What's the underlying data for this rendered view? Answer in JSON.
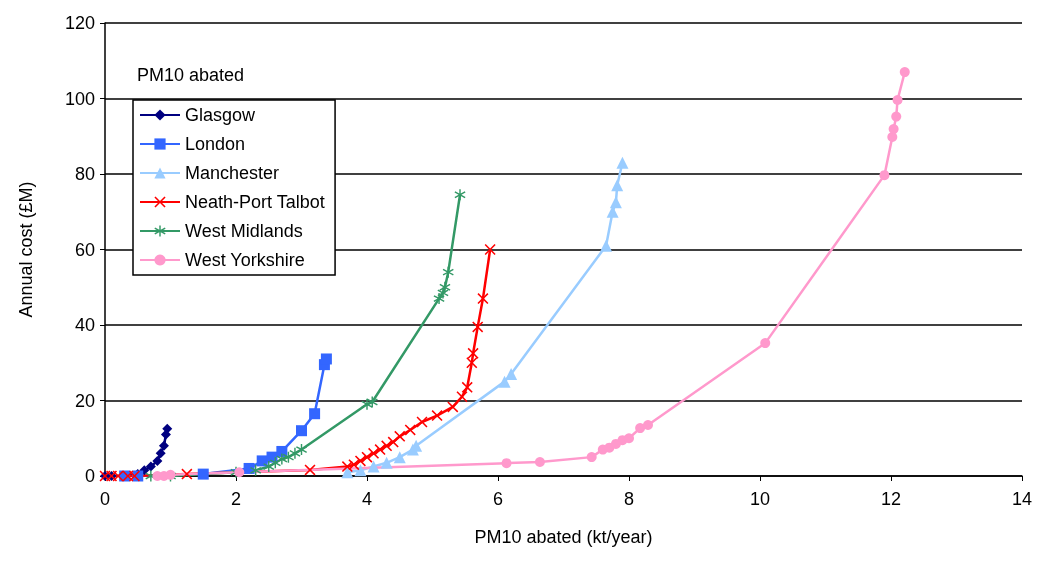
{
  "chart_data": {
    "type": "line",
    "xlabel": "PM10 abated (kt/year)",
    "ylabel": "Annual cost (£M)",
    "legend_title": "PM10 abated",
    "legend": "top left",
    "grid": "y",
    "xlim": [
      0,
      14
    ],
    "xticks": [
      0,
      2,
      4,
      6,
      8,
      10,
      12,
      14
    ],
    "ylim": [
      0,
      120
    ],
    "yticks": [
      0,
      20,
      40,
      60,
      80,
      100,
      120
    ],
    "line_style": "solid",
    "series": [
      {
        "name": "Glasgow",
        "color": "#000080",
        "marker": "diamond",
        "x": [
          0,
          0.1,
          0.3,
          0.5,
          0.6,
          0.7,
          0.8,
          0.85,
          0.9,
          0.93,
          0.95
        ],
        "values": [
          0,
          0,
          0,
          0.5,
          1.5,
          2.5,
          4,
          6,
          8,
          11,
          12.5
        ]
      },
      {
        "name": "London",
        "color": "#3366ff",
        "marker": "square",
        "x": [
          0.3,
          0.5,
          1.5,
          2.2,
          2.4,
          2.55,
          2.7,
          3.0,
          3.2,
          3.35,
          3.38
        ],
        "values": [
          0,
          0,
          0.5,
          2,
          4,
          5,
          6.5,
          12,
          16.5,
          29.5,
          31
        ]
      },
      {
        "name": "Manchester",
        "color": "#99ccff",
        "marker": "triangle",
        "x": [
          3.7,
          3.9,
          4.1,
          4.3,
          4.5,
          4.7,
          4.75,
          6.1,
          6.2,
          7.65,
          7.75,
          7.8,
          7.82,
          7.9
        ],
        "values": [
          1,
          1.5,
          2.5,
          3.5,
          5,
          7,
          8,
          25,
          27,
          61,
          70,
          72.5,
          77,
          83
        ]
      },
      {
        "name": "Neath-Port Talbot",
        "color": "#ff0000",
        "marker": "cross",
        "x": [
          0,
          0.1,
          0.2,
          0.35,
          0.45,
          1.25,
          3.13,
          3.7,
          3.8,
          3.9,
          4.0,
          4.1,
          4.2,
          4.3,
          4.4,
          4.5,
          4.66,
          4.84,
          5.07,
          5.31,
          5.45,
          5.53,
          5.6,
          5.62,
          5.69,
          5.77,
          5.88
        ],
        "values": [
          0,
          0,
          0,
          0,
          0,
          0.5,
          1.6,
          2.5,
          3,
          4,
          5,
          6,
          7,
          8,
          9,
          10.5,
          12.2,
          14.3,
          16,
          18.3,
          21,
          23.5,
          30,
          32.5,
          39.5,
          47,
          60
        ]
      },
      {
        "name": "West Midlands",
        "color": "#339966",
        "marker": "star",
        "x": [
          0.7,
          1.0,
          2.0,
          2.3,
          2.5,
          2.6,
          2.7,
          2.8,
          2.9,
          3.0,
          4.0,
          4.08,
          5.1,
          5.16,
          5.19,
          5.24,
          5.42
        ],
        "values": [
          0,
          0,
          1,
          1.5,
          2.5,
          3.5,
          4.5,
          5,
          6,
          7,
          19,
          19.6,
          47,
          48.5,
          50,
          54,
          74.5
        ]
      },
      {
        "name": "West Yorkshire",
        "color": "#ff99cc",
        "marker": "circle",
        "x": [
          0.8,
          0.9,
          1.0,
          2.05,
          6.13,
          6.64,
          7.43,
          7.6,
          7.7,
          7.8,
          7.9,
          8.0,
          8.17,
          8.29,
          10.08,
          11.9,
          12.02,
          12.04,
          12.08,
          12.1,
          12.21
        ],
        "values": [
          0,
          0,
          0.3,
          1,
          3.4,
          3.7,
          5,
          7,
          7.5,
          8.5,
          9.5,
          10,
          12.7,
          13.5,
          35.2,
          79.7,
          89.8,
          91.9,
          95.2,
          99.6,
          107
        ]
      }
    ]
  }
}
